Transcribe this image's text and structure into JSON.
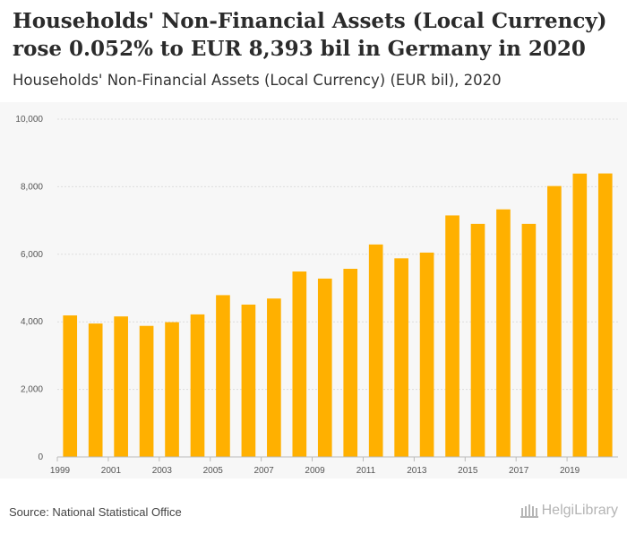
{
  "header": {
    "title": "Households' Non-Financial Assets (Local Currency) rose 0.052% to EUR 8,393 bil in Germany in 2020",
    "subtitle": "Households' Non-Financial Assets (Local Currency) (EUR bil), 2020"
  },
  "footer": {
    "source": "Source: National Statistical Office",
    "logo_text": "HelgiLibrary",
    "logo_icon": "library-building-icon"
  },
  "colors": {
    "bar": "#FFB000",
    "grid": "#dddddd",
    "axis": "#bbbbbb"
  },
  "chart_data": {
    "type": "bar",
    "title": "Households' Non-Financial Assets (Local Currency) (EUR bil)",
    "xlabel": "",
    "ylabel": "",
    "ylim": [
      0,
      10000
    ],
    "grid": true,
    "y_ticks": [
      0,
      2000,
      4000,
      6000,
      8000,
      10000
    ],
    "y_tick_labels": [
      "0",
      "2,000",
      "4,000",
      "6,000",
      "8,000",
      "10,000"
    ],
    "categories": [
      "1999",
      "2000",
      "2001",
      "2002",
      "2003",
      "2004",
      "2005",
      "2006",
      "2007",
      "2008",
      "2009",
      "2010",
      "2011",
      "2012",
      "2013",
      "2014",
      "2015",
      "2016",
      "2017",
      "2018",
      "2019",
      "2020"
    ],
    "x_tick_labels": [
      "1999",
      "2001",
      "2003",
      "2005",
      "2007",
      "2009",
      "2011",
      "2013",
      "2015",
      "2017",
      "2019"
    ],
    "values": [
      4190,
      3950,
      4160,
      3880,
      3990,
      4220,
      4790,
      4510,
      4690,
      5490,
      5280,
      5570,
      6290,
      5880,
      6050,
      7150,
      6900,
      7330,
      6900,
      8020,
      8389,
      8393
    ]
  }
}
